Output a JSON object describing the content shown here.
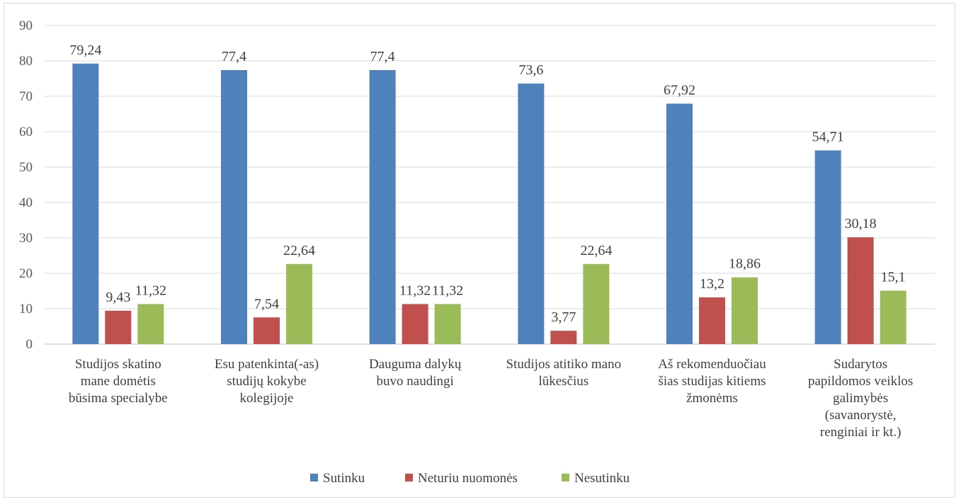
{
  "chart_data": {
    "type": "bar",
    "categories": [
      [
        "Studijos skatino",
        "mane domėtis",
        "būsima specialybe"
      ],
      [
        "Esu patenkinta(-as)",
        "studijų kokybe",
        "kolegijoje"
      ],
      [
        "Dauguma dalykų",
        "buvo naudingi"
      ],
      [
        "Studijos atitiko mano",
        "lūkesčius"
      ],
      [
        "Aš rekomenduočiau",
        "šias studijas kitiems",
        "žmonėms"
      ],
      [
        "Sudarytos",
        "papildomos veiklos",
        "galimybės",
        "(savanorystė,",
        "renginiai ir kt.)"
      ]
    ],
    "series": [
      {
        "name": "Sutinku",
        "color": "#4f81bd",
        "values": [
          79.24,
          77.4,
          77.4,
          73.6,
          67.92,
          54.71
        ],
        "labels": [
          "79,24",
          "77,4",
          "77,4",
          "73,6",
          "67,92",
          "54,71"
        ]
      },
      {
        "name": "Neturiu nuomonės",
        "color": "#c0504d",
        "values": [
          9.43,
          7.54,
          11.32,
          3.77,
          13.2,
          30.18
        ],
        "labels": [
          "9,43",
          "7,54",
          "11,32",
          "3,77",
          "13,2",
          "30,18"
        ]
      },
      {
        "name": "Nesutinku",
        "color": "#9bbb59",
        "values": [
          11.32,
          22.64,
          11.32,
          22.64,
          18.86,
          15.1
        ],
        "labels": [
          "11,32",
          "22,64",
          "11,32",
          "22,64",
          "18,86",
          "15,1"
        ]
      }
    ],
    "ylim": [
      0,
      90
    ],
    "yticks": [
      0,
      10,
      20,
      30,
      40,
      50,
      60,
      70,
      80,
      90
    ],
    "grid": true,
    "legend_position": "bottom"
  }
}
